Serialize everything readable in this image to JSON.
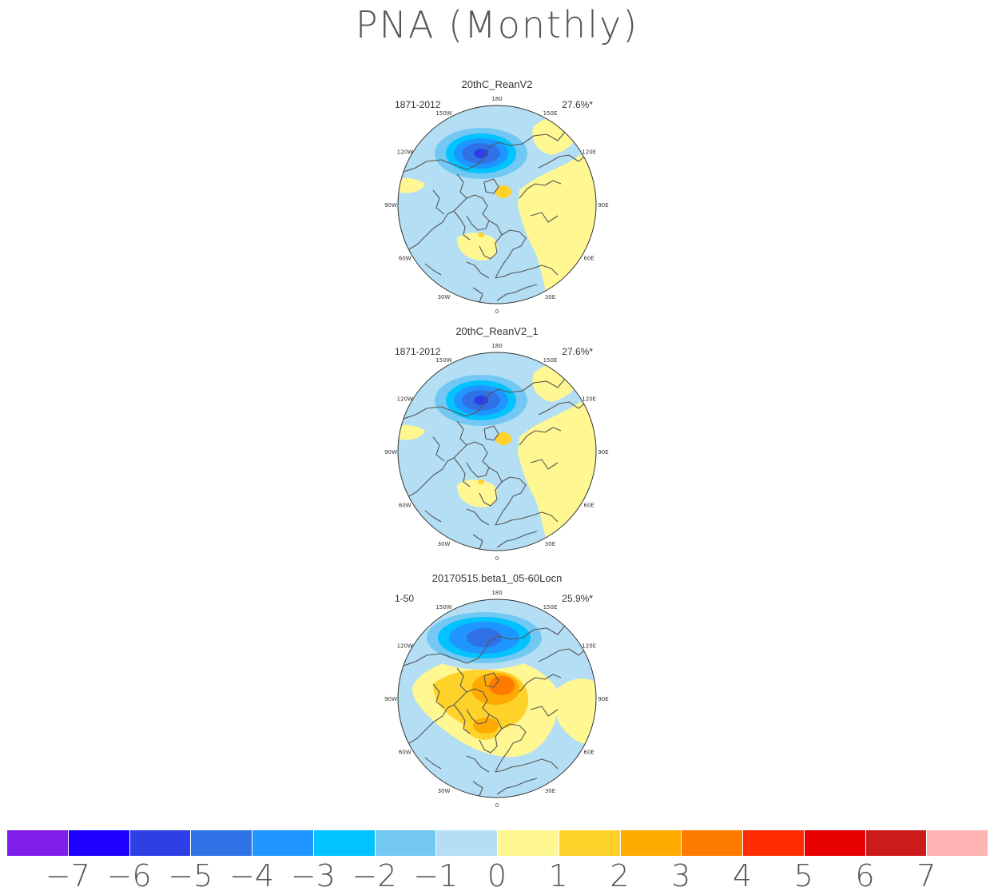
{
  "title": "PNA (Monthly)",
  "panels": [
    {
      "name": "20thC_ReanV2",
      "period": "1871-2012",
      "variance": "27.6%*",
      "pattern": "obs"
    },
    {
      "name": "20thC_ReanV2_1",
      "period": "1871-2012",
      "variance": "27.6%*",
      "pattern": "obs"
    },
    {
      "name": "20170515.beta1_05-60Locn",
      "period": "1-50",
      "variance": "25.9%*",
      "pattern": "model"
    }
  ],
  "lon_labels": [
    "180",
    "150E",
    "120E",
    "90E",
    "60E",
    "30E",
    "0",
    "30W",
    "60W",
    "90W",
    "120W",
    "150W"
  ],
  "colorbar": {
    "colors": [
      "#7f1ee8",
      "#1e00ff",
      "#2d40e6",
      "#3071e6",
      "#1f96ff",
      "#00c3ff",
      "#73c8f3",
      "#b4def3",
      "#fff792",
      "#ffd22a",
      "#ffaa00",
      "#ff7b00",
      "#ff2c00",
      "#e60000",
      "#cc1b1b",
      "#ffb4b4"
    ],
    "labels": [
      "-7",
      "-6",
      "-5",
      "-4",
      "-3",
      "-2",
      "-1",
      "0",
      "1",
      "2",
      "3",
      "4",
      "5",
      "6",
      "7"
    ]
  }
}
